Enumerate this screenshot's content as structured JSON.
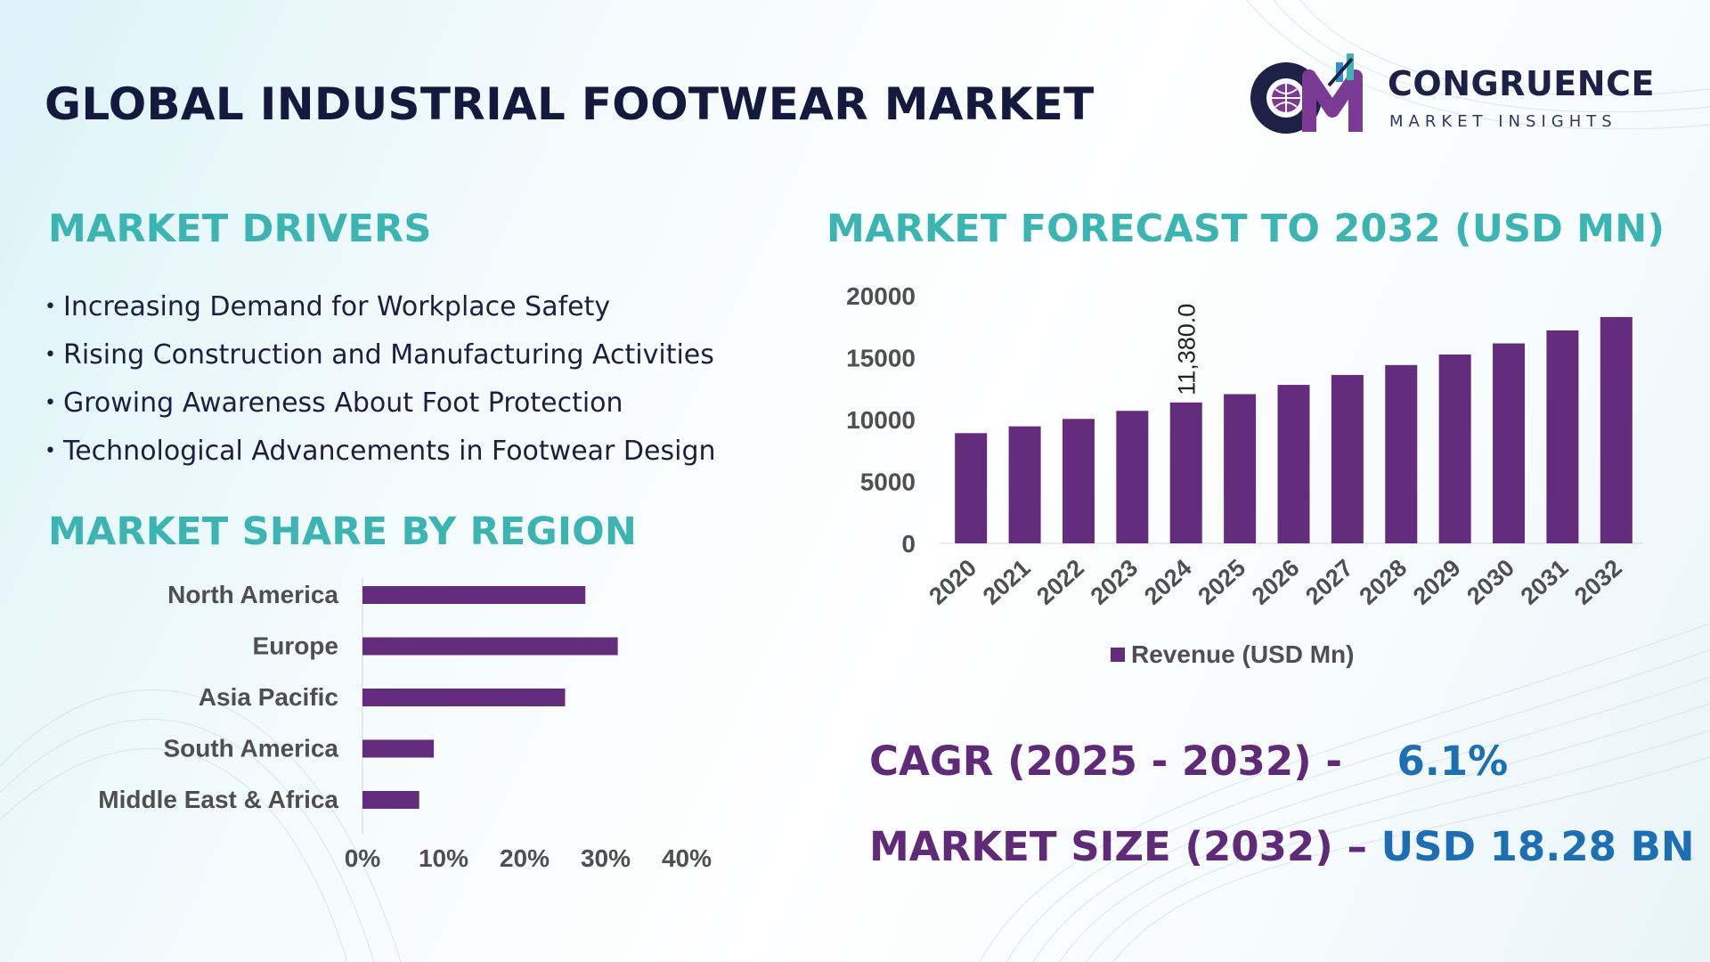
{
  "title": "GLOBAL INDUSTRIAL FOOTWEAR MARKET",
  "logo": {
    "name": "CONGRUENCE",
    "tagline": "MARKET INSIGHTS",
    "monogram": "CM"
  },
  "drivers": {
    "heading": "MARKET DRIVERS",
    "items": [
      "Increasing Demand for Workplace Safety",
      "Rising Construction and Manufacturing Activities",
      "Growing Awareness About Foot Protection",
      "Technological Advancements in Footwear Design"
    ]
  },
  "region": {
    "heading": "MARKET SHARE BY REGION"
  },
  "forecast": {
    "heading": "MARKET FORECAST TO 2032 (USD MN)"
  },
  "stats": {
    "cagr_label": "CAGR (2025 - 2032) -",
    "cagr_value": "6.1%",
    "size_label": "MARKET SIZE (2032) –",
    "size_value": "USD 18.28 BN"
  },
  "colors": {
    "bar": "#642c7c",
    "teal_heading": "#3bb5b2",
    "stat_purple": "#5f2a77",
    "stat_blue": "#1c6fb3",
    "title_navy": "#131a3d",
    "axis_text": "#4f4f4f"
  },
  "chart_data": [
    {
      "type": "bar",
      "orientation": "horizontal",
      "categories": [
        "North America",
        "Europe",
        "Asia Pacific",
        "South America",
        "Middle East & Africa"
      ],
      "values": [
        27.5,
        31.5,
        25.0,
        8.8,
        7.0
      ],
      "xlim": [
        0,
        40
      ],
      "xticks": [
        "0%",
        "10%",
        "20%",
        "30%",
        "40%"
      ]
    },
    {
      "type": "bar",
      "categories": [
        "2020",
        "2021",
        "2022",
        "2023",
        "2024",
        "2025",
        "2026",
        "2027",
        "2028",
        "2029",
        "2030",
        "2031",
        "2032"
      ],
      "series": [
        {
          "name": "Revenue (USD Mn)",
          "values": [
            8900,
            9450,
            10050,
            10700,
            11380,
            12050,
            12800,
            13600,
            14400,
            15250,
            16150,
            17200,
            18280
          ]
        }
      ],
      "ylim": [
        0,
        20000
      ],
      "yticks": [
        "20000",
        "15000",
        "10000",
        "5000",
        "0"
      ],
      "annotations": [
        {
          "category": "2024",
          "label": "11,380.0"
        }
      ],
      "legend": "bottom"
    }
  ]
}
